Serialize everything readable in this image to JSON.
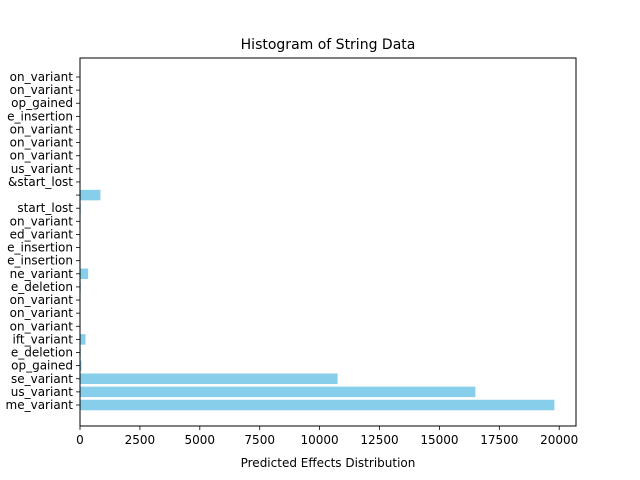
{
  "chart_data": {
    "type": "bar",
    "orientation": "horizontal",
    "title": "Histogram of String Data",
    "xlabel": "Predicted Effects Distribution",
    "ylabel": "",
    "xlim": [
      0,
      20700
    ],
    "x_ticks": [
      0,
      2500,
      5000,
      7500,
      10000,
      12500,
      15000,
      17500,
      20000
    ],
    "x_tick_labels": [
      "0",
      "2500",
      "5000",
      "7500",
      "10000",
      "12500",
      "15000",
      "17500",
      "20000"
    ],
    "grid": false,
    "legend": "none",
    "bar_color": "#87ceeb",
    "categories": [
      "me_variant",
      "us_variant",
      "se_variant",
      "op_gained",
      "e_deletion",
      "ift_variant",
      "on_variant",
      "on_variant",
      "on_variant",
      "e_deletion",
      "ne_variant",
      "e_insertion",
      "e_insertion",
      "ed_variant",
      "on_variant",
      "start_lost",
      "",
      "&start_lost",
      "us_variant",
      "on_variant",
      "on_variant",
      "on_variant",
      "e_insertion",
      "op_gained",
      "on_variant",
      "on_variant"
    ],
    "values": [
      19800,
      16500,
      10750,
      60,
      30,
      230,
      20,
      20,
      20,
      30,
      340,
      20,
      20,
      20,
      20,
      30,
      850,
      20,
      20,
      20,
      20,
      20,
      20,
      20,
      20,
      20
    ]
  }
}
